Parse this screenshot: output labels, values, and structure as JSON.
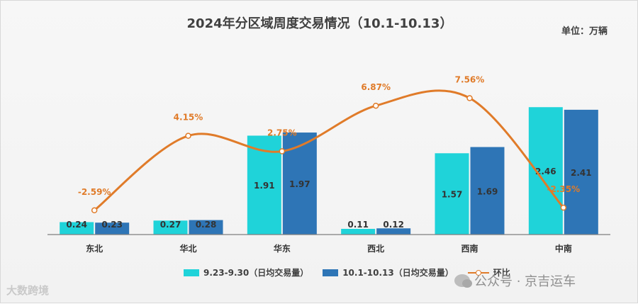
{
  "header": {
    "title": "2024年分区域周度交易情况（10.1-10.13）",
    "unit": "单位：万辆"
  },
  "legend": {
    "s1": "9.23-9.30（日均交易量）",
    "s2": "10.1-10.13（日均交易量）",
    "s3": "环比"
  },
  "colors": {
    "s1": "#1fd3d9",
    "s2": "#2e75b6",
    "line": "#e07b29"
  },
  "watermark": {
    "left": "大数跨境",
    "right": "公众号 · 京吉运车"
  },
  "chart_data": {
    "type": "bar",
    "categories": [
      "东北",
      "华北",
      "华东",
      "西北",
      "西南",
      "中南"
    ],
    "series": [
      {
        "name": "9.23-9.30（日均交易量）",
        "values": [
          0.24,
          0.27,
          1.91,
          0.11,
          1.57,
          2.46
        ]
      },
      {
        "name": "10.1-10.13（日均交易量）",
        "values": [
          0.23,
          0.28,
          1.97,
          0.12,
          1.69,
          2.41
        ]
      }
    ],
    "line": {
      "name": "环比",
      "values": [
        -2.59,
        4.15,
        2.75,
        6.87,
        7.56,
        -2.35
      ],
      "labels": [
        "-2.59%",
        "4.15%",
        "2.75%",
        "6.87%",
        "7.56%",
        "-2.35%"
      ]
    },
    "ylim": [
      0,
      2.6
    ],
    "line_ylim": [
      -3.5,
      9
    ],
    "legend_position": "bottom",
    "grid": false
  }
}
